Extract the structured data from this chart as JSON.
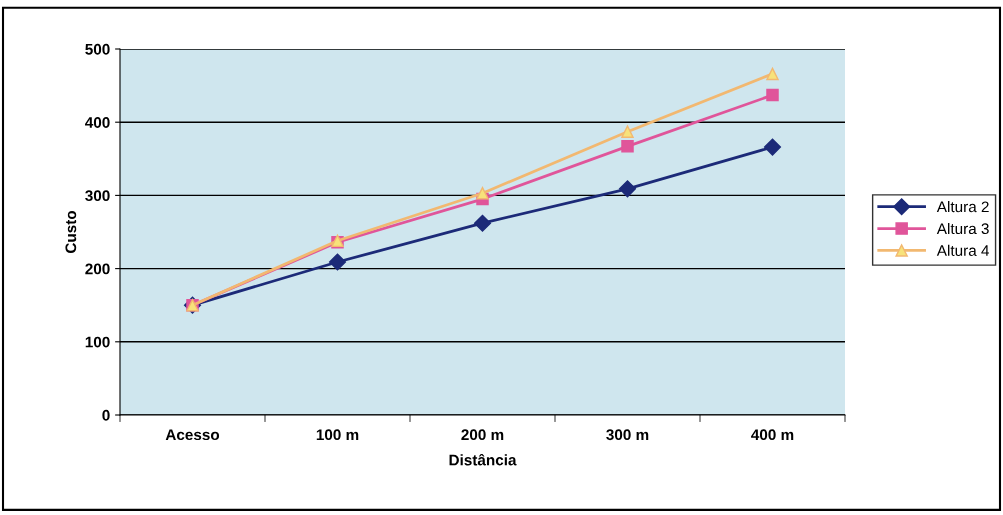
{
  "chart_data": {
    "type": "line",
    "xlabel": "Distância",
    "ylabel": "Custo",
    "categories": [
      "Acesso",
      "100 m",
      "200 m",
      "300 m",
      "400 m"
    ],
    "series": [
      {
        "name": "Altura 2",
        "color": "#1c2a78",
        "marker": "diamond",
        "values": [
          150,
          209,
          262,
          309,
          366
        ]
      },
      {
        "name": "Altura 3",
        "color": "#e0559a",
        "marker": "square",
        "values": [
          150,
          236,
          295,
          367,
          437
        ]
      },
      {
        "name": "Altura 4",
        "color": "#f2b870",
        "marker": "triangle",
        "values": [
          150,
          238,
          303,
          387,
          466
        ]
      }
    ],
    "ylim": [
      0,
      500
    ],
    "yticks": [
      0,
      100,
      200,
      300,
      400,
      500
    ],
    "grid": "y",
    "legend": "right",
    "line_style": "solid"
  }
}
